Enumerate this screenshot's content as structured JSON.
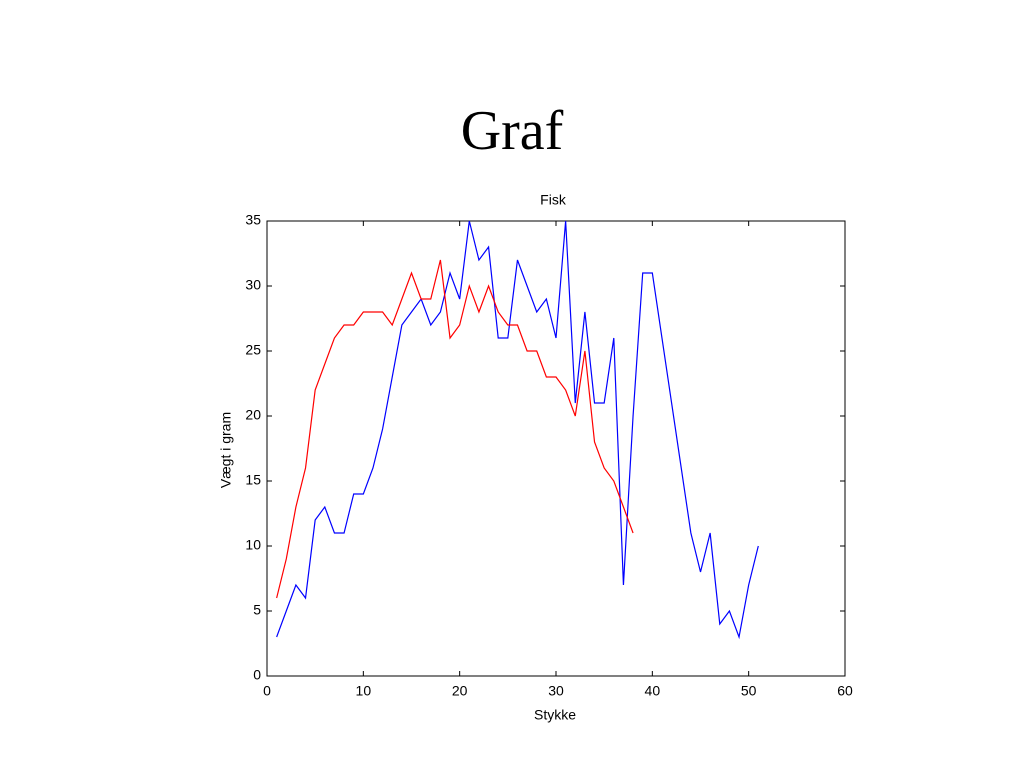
{
  "slide_title": "Graf",
  "chart_data": {
    "type": "line",
    "title": "Fisk",
    "xlabel": "Stykke",
    "ylabel": "Vægt i gram",
    "xlim": [
      0,
      60
    ],
    "xticks": [
      0,
      10,
      20,
      30,
      40,
      50,
      60
    ],
    "ylim": [
      0,
      35
    ],
    "yticks": [
      0,
      5,
      10,
      15,
      20,
      25,
      30,
      35
    ],
    "series": [
      {
        "color": "#0000ff",
        "x": [
          1,
          2,
          3,
          4,
          5,
          6,
          7,
          8,
          9,
          10,
          11,
          12,
          13,
          14,
          15,
          16,
          17,
          18,
          19,
          20,
          21,
          22,
          23,
          24,
          25,
          26,
          27,
          28,
          29,
          30,
          31,
          32,
          33,
          34,
          35,
          36,
          37,
          38,
          39,
          40,
          41,
          42,
          43,
          44,
          45,
          46,
          47,
          48,
          49,
          50,
          51
        ],
        "values": [
          3,
          5,
          7,
          6,
          12,
          13,
          11,
          11,
          14,
          14,
          16,
          19,
          23,
          27,
          28,
          29,
          27,
          28,
          31,
          29,
          35,
          32,
          33,
          26,
          26,
          32,
          30,
          28,
          29,
          26,
          35,
          21,
          28,
          21,
          21,
          26,
          7,
          20,
          31,
          31,
          26,
          21,
          16,
          11,
          8,
          11,
          4,
          5,
          3,
          7,
          10
        ]
      },
      {
        "color": "#ff0000",
        "x": [
          1,
          2,
          3,
          4,
          5,
          6,
          7,
          8,
          9,
          10,
          11,
          12,
          13,
          14,
          15,
          16,
          17,
          18,
          19,
          20,
          21,
          22,
          23,
          24,
          25,
          26,
          27,
          28,
          29,
          30,
          31,
          32,
          33,
          34,
          35,
          36,
          37,
          38
        ],
        "values": [
          6,
          9,
          13,
          16,
          22,
          24,
          26,
          27,
          27,
          28,
          28,
          28,
          27,
          29,
          31,
          29,
          29,
          32,
          26,
          27,
          30,
          28,
          30,
          28,
          27,
          27,
          25,
          25,
          23,
          23,
          22,
          20,
          25,
          18,
          16,
          15,
          13,
          11
        ]
      }
    ]
  }
}
